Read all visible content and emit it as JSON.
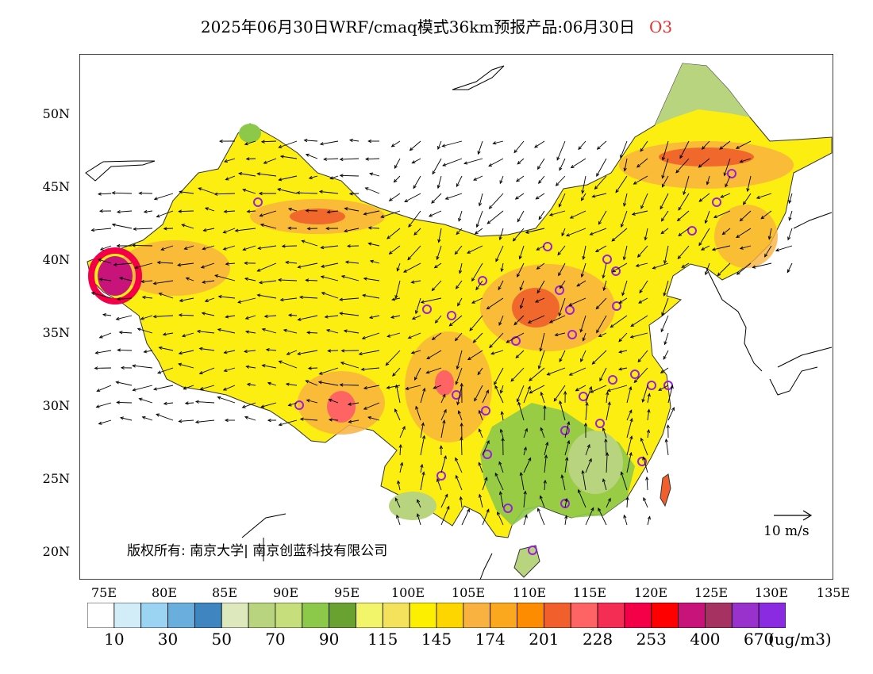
{
  "title": {
    "main": "2025年06月30日WRF/cmaq模式36km预报产品:06月30日",
    "species": "O3"
  },
  "axes": {
    "lat_labels": [
      "50N",
      "45N",
      "40N",
      "35N",
      "30N",
      "25N",
      "20N"
    ],
    "lon_labels": [
      "75E",
      "80E",
      "85E",
      "90E",
      "95E",
      "100E",
      "105E",
      "110E",
      "115E",
      "120E",
      "125E",
      "130E",
      "135E"
    ]
  },
  "map": {
    "region": "China",
    "lon_range": [
      73.5,
      135
    ],
    "lat_range": [
      18,
      54
    ],
    "projection": "lat-lon",
    "field": "O3 concentration",
    "overlay": "wind vectors",
    "sites": "purple circles"
  },
  "colorbar": {
    "colors": [
      "#ffffff",
      "#d2ecf8",
      "#9ad4f2",
      "#6aaedd",
      "#3f86c0",
      "#dde9bd",
      "#b8d47f",
      "#c6df7c",
      "#8cc84a",
      "#6aa232",
      "#f2f56a",
      "#f4e25c",
      "#fcef00",
      "#fdd600",
      "#f9b13f",
      "#fca81e",
      "#fd8c00",
      "#f05f2c",
      "#fe6464",
      "#f42d54",
      "#f30048",
      "#fe0000",
      "#c8147a",
      "#a63262",
      "#9932cc",
      "#8a2be2"
    ],
    "labels": [
      "10",
      "30",
      "50",
      "70",
      "90",
      "115",
      "145",
      "174",
      "201",
      "228",
      "253",
      "400",
      "670"
    ],
    "unit": "(ug/m3)"
  },
  "copyright": "版权所有: 南京大学| 南京创蓝科技有限公司",
  "scale_vector": "10 m/s"
}
